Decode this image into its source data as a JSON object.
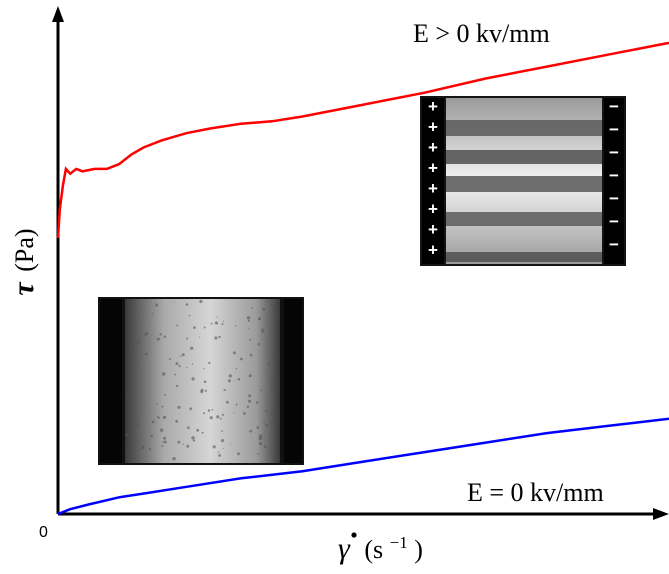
{
  "chart_data": {
    "type": "line",
    "xlabel_symbol": "γ",
    "xlabel_unit": "(s",
    "xlabel_exp": "−1",
    "xlabel_close": ")",
    "ylabel_symbol": "τ",
    "ylabel_unit": "(Pa)",
    "origin_label": "0",
    "xlim": [
      0,
      100
    ],
    "ylim": [
      0,
      100
    ],
    "series": [
      {
        "name": "E > 0 kv/mm",
        "color": "#ff0000",
        "x": [
          0,
          0.3,
          0.8,
          1.3,
          2,
          3,
          4,
          6,
          8,
          10,
          12,
          14,
          17,
          21,
          25,
          30,
          35,
          40,
          50,
          60,
          70,
          80,
          90,
          100
        ],
        "y": [
          58,
          64,
          69,
          72.5,
          71.5,
          72.5,
          72,
          72.5,
          72.5,
          73.5,
          75.5,
          77,
          78.5,
          80,
          81,
          82,
          82.5,
          83.5,
          86,
          88.5,
          91.5,
          94,
          96.5,
          99
        ]
      },
      {
        "name": "E = 0 kv/mm",
        "color": "#0000ff",
        "x": [
          0,
          2,
          5,
          10,
          15,
          20,
          30,
          40,
          50,
          60,
          70,
          80,
          90,
          100
        ],
        "y": [
          0,
          1,
          2,
          3.5,
          4.5,
          5.5,
          7.5,
          9,
          11,
          13,
          15,
          17,
          18.5,
          20
        ]
      }
    ]
  },
  "insets": {
    "energized_signs_left": [
      "+",
      "+",
      "+",
      "+",
      "+",
      "+",
      "+",
      "+"
    ],
    "energized_signs_right": [
      "−",
      "−",
      "−",
      "−",
      "−",
      "−",
      "−"
    ]
  }
}
